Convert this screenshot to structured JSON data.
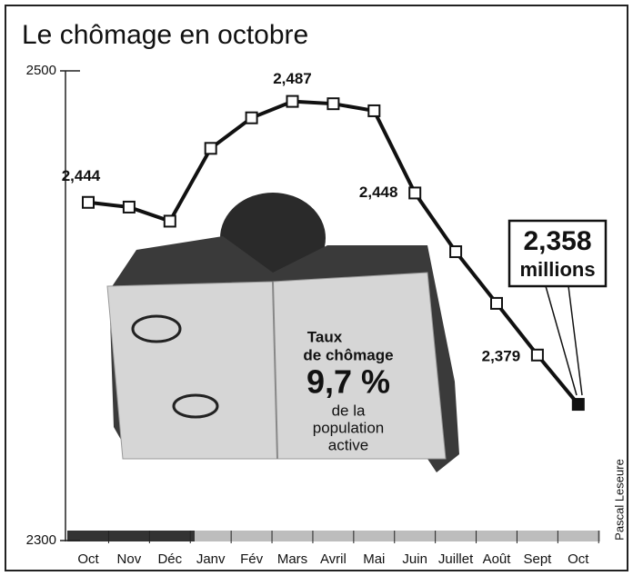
{
  "chart_data": {
    "type": "line",
    "title": "Le chômage en octobre",
    "categories": [
      "Oct",
      "Nov",
      "Déc",
      "Janv",
      "Fév",
      "Mars",
      "Avril",
      "Mai",
      "Juin",
      "Juillet",
      "Août",
      "Sept",
      "Oct"
    ],
    "values": [
      2444,
      2442,
      2436,
      2467,
      2480,
      2487,
      2486,
      2483,
      2448,
      2423,
      2401,
      2379,
      2358
    ],
    "value_labels": [
      "2,444",
      null,
      null,
      null,
      null,
      "2,487",
      null,
      null,
      "2,448",
      null,
      null,
      "2,379",
      "2,358"
    ],
    "value_unit_label": "millions",
    "color": "#111111",
    "ylim": [
      2300,
      2500
    ],
    "yticks": [
      2300,
      2500
    ],
    "annotation": {
      "intro": [
        "Taux",
        "de chômage"
      ],
      "rate": "9,7 %",
      "outro": [
        "de la",
        "population",
        "active"
      ]
    },
    "credit": "Pascal Leseure"
  }
}
